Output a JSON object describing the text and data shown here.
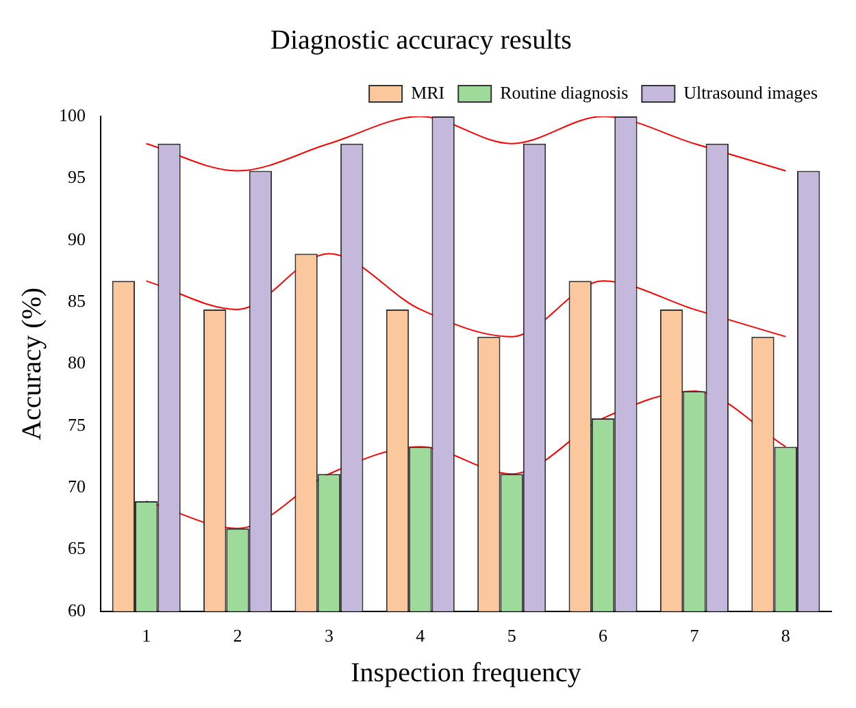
{
  "chart_data": {
    "type": "bar",
    "title": "Diagnostic accuracy results",
    "xlabel": "Inspection frequency",
    "ylabel": "Accuracy (%)",
    "categories": [
      "1",
      "2",
      "3",
      "4",
      "5",
      "6",
      "7",
      "8"
    ],
    "series": [
      {
        "name": "MRI",
        "color": "#fbc89e",
        "values": [
          86.7,
          84.4,
          88.9,
          84.4,
          82.2,
          86.7,
          84.4,
          82.2
        ]
      },
      {
        "name": "Routine diagnosis",
        "color": "#9edb9b",
        "values": [
          68.9,
          66.7,
          71.1,
          73.3,
          71.1,
          75.6,
          77.8,
          73.3
        ]
      },
      {
        "name": "Ultrasound images",
        "color": "#c4b8dc",
        "values": [
          97.8,
          95.6,
          97.8,
          100,
          97.8,
          100,
          97.8,
          95.6
        ]
      },
      {
        "type": "line",
        "color": "#ff0000",
        "values": [
          86.7,
          84.4,
          88.9,
          84.4,
          82.2,
          86.7,
          84.4,
          82.2
        ]
      },
      {
        "type": "line",
        "color": "#ff0000",
        "values": [
          68.9,
          66.7,
          71.1,
          73.3,
          71.1,
          75.6,
          77.8,
          73.3
        ]
      },
      {
        "type": "line",
        "color": "#ff0000",
        "values": [
          97.8,
          95.6,
          97.8,
          100,
          97.8,
          100,
          97.8,
          95.6
        ]
      }
    ],
    "ylim": [
      60,
      100
    ],
    "yticks": [
      60,
      65,
      70,
      75,
      80,
      85,
      90,
      95,
      100
    ],
    "legend": "top right"
  }
}
